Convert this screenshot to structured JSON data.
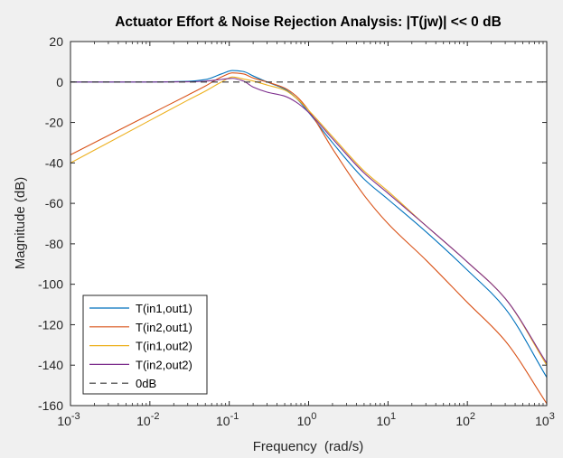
{
  "chart_data": {
    "type": "line",
    "title": "Actuator Effort & Noise Rejection Analysis: |T(jw)| << 0 dB",
    "xlabel": "Frequency  (rad/s)",
    "ylabel": "Magnitude (dB)",
    "xscale": "log",
    "xlim": [
      0.001,
      1000
    ],
    "ylim": [
      -160,
      20
    ],
    "x_ticks": [
      {
        "value": 0.001,
        "base": "10",
        "exp": "-3"
      },
      {
        "value": 0.01,
        "base": "10",
        "exp": "-2"
      },
      {
        "value": 0.1,
        "base": "10",
        "exp": "-1"
      },
      {
        "value": 1,
        "base": "10",
        "exp": "0"
      },
      {
        "value": 10,
        "base": "10",
        "exp": "1"
      },
      {
        "value": 100,
        "base": "10",
        "exp": "2"
      },
      {
        "value": 1000,
        "base": "10",
        "exp": "3"
      }
    ],
    "y_ticks": [
      20,
      0,
      -20,
      -40,
      -60,
      -80,
      -100,
      -120,
      -140,
      -160
    ],
    "grid": false,
    "legend_position": "bottom-left",
    "series": [
      {
        "name": "T(in1,out1)",
        "color": "#0072BD",
        "style": "solid",
        "x": [
          0.001,
          0.01,
          0.03,
          0.05,
          0.08,
          0.11,
          0.15,
          0.2,
          0.3,
          0.5,
          0.7,
          1,
          2,
          5,
          10,
          30,
          100,
          300,
          1000
        ],
        "y": [
          0,
          0,
          0.3,
          1.2,
          4,
          5.7,
          5.2,
          3,
          0,
          -3.5,
          -8,
          -15,
          -30,
          -48,
          -58,
          -74,
          -93,
          -112,
          -146
        ]
      },
      {
        "name": "T(in2,out1)",
        "color": "#D95319",
        "style": "solid",
        "x": [
          0.001,
          0.01,
          0.03,
          0.05,
          0.08,
          0.11,
          0.15,
          0.2,
          0.3,
          0.5,
          0.7,
          1,
          2,
          5,
          10,
          30,
          100,
          300,
          1000
        ],
        "y": [
          -36,
          -16,
          -6.5,
          -2,
          2.5,
          4.5,
          4,
          2,
          0,
          -3,
          -7,
          -14,
          -33,
          -56,
          -70,
          -88,
          -109,
          -128,
          -159
        ]
      },
      {
        "name": "T(in1,out2)",
        "color": "#EDB120",
        "style": "solid",
        "x": [
          0.001,
          0.01,
          0.03,
          0.05,
          0.08,
          0.11,
          0.15,
          0.2,
          0.3,
          0.5,
          0.7,
          1,
          2,
          5,
          10,
          30,
          100,
          300,
          1000
        ],
        "y": [
          -40,
          -19,
          -9,
          -4.5,
          0,
          2.5,
          1.5,
          0.5,
          -1.5,
          -4,
          -8,
          -14,
          -27,
          -44,
          -54,
          -71,
          -89,
          -107,
          -140
        ]
      },
      {
        "name": "T(in2,out2)",
        "color": "#7E2F8E",
        "style": "solid",
        "x": [
          0.001,
          0.01,
          0.03,
          0.05,
          0.08,
          0.11,
          0.15,
          0.2,
          0.3,
          0.5,
          0.7,
          1,
          2,
          5,
          10,
          30,
          100,
          300,
          1000
        ],
        "y": [
          0,
          0,
          0.1,
          0.4,
          1.3,
          1.8,
          0.5,
          -2.5,
          -5,
          -7,
          -10,
          -15,
          -28,
          -45,
          -55,
          -71,
          -89,
          -107,
          -139
        ]
      },
      {
        "name": "0dB",
        "color": "#333333",
        "style": "dashed",
        "x": [
          0.001,
          1000
        ],
        "y": [
          0,
          0
        ]
      }
    ]
  }
}
